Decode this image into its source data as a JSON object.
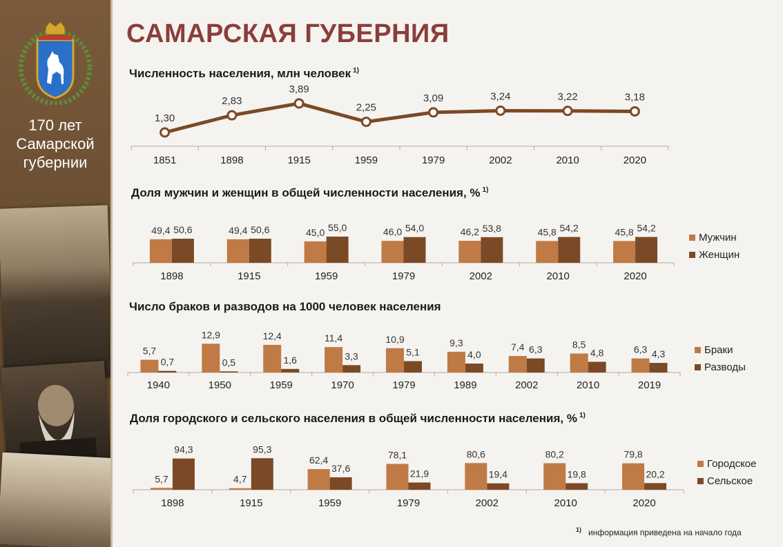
{
  "page": {
    "title": "САМАРСКАЯ ГУБЕРНИЯ",
    "sidebar_title_lines": [
      "170 лет",
      "Самарской",
      "губернии"
    ],
    "footnote_marker": "1)",
    "footnote_text": "информация приведена на начало года"
  },
  "colors": {
    "primary": "#c07a45",
    "secondary": "#7a4a26",
    "line": "#7a4a26",
    "title": "#8b3e3a"
  },
  "chart_data": [
    {
      "type": "line",
      "title": "Численность населения, млн человек",
      "title_note": "1)",
      "categories": [
        "1851",
        "1898",
        "1915",
        "1959",
        "1979",
        "2002",
        "2010",
        "2020"
      ],
      "value_labels": [
        "1,30",
        "2,83",
        "3,89",
        "2,25",
        "3,09",
        "3,24",
        "3,22",
        "3,18"
      ],
      "values": [
        1.3,
        2.83,
        3.89,
        2.25,
        3.09,
        3.24,
        3.22,
        3.18
      ],
      "ylim": [
        0.5,
        4.5
      ],
      "legend": []
    },
    {
      "type": "bar",
      "title": "Доля мужчин и женщин в общей численности населения, %",
      "title_note": "1)",
      "categories": [
        "1898",
        "1915",
        "1959",
        "1979",
        "2002",
        "2010",
        "2020"
      ],
      "series": [
        {
          "name": "Мужчин",
          "values": [
            49.4,
            49.4,
            45.0,
            46.0,
            46.2,
            45.8,
            45.8
          ],
          "labels": [
            "49,4",
            "49,4",
            "45,0",
            "46,0",
            "46,2",
            "45,8",
            "45,8"
          ]
        },
        {
          "name": "Женщин",
          "values": [
            50.6,
            50.6,
            55.0,
            54.0,
            53.8,
            54.2,
            54.2
          ],
          "labels": [
            "50,6",
            "50,6",
            "55,0",
            "54,0",
            "53,8",
            "54,2",
            "54,2"
          ]
        }
      ],
      "ylim": [
        0,
        55
      ],
      "legend": "right"
    },
    {
      "type": "bar",
      "title": "Число браков и разводов на 1000 человек населения",
      "title_note": "",
      "categories": [
        "1940",
        "1950",
        "1959",
        "1970",
        "1979",
        "1989",
        "2002",
        "2010",
        "2019"
      ],
      "series": [
        {
          "name": "Браки",
          "values": [
            5.7,
            12.9,
            12.4,
            11.4,
            10.9,
            9.3,
            7.4,
            8.5,
            6.3
          ],
          "labels": [
            "5,7",
            "12,9",
            "12,4",
            "11,4",
            "10,9",
            "9,3",
            "7,4",
            "8,5",
            "6,3"
          ]
        },
        {
          "name": "Разводы",
          "values": [
            0.7,
            0.5,
            1.6,
            3.3,
            5.1,
            4.0,
            6.3,
            4.8,
            4.3
          ],
          "labels": [
            "0,7",
            "0,5",
            "1,6",
            "3,3",
            "5,1",
            "4,0",
            "6,3",
            "4,8",
            "4,3"
          ]
        }
      ],
      "ylim": [
        0,
        13
      ],
      "legend": "right"
    },
    {
      "type": "bar",
      "title": "Доля городского и сельского населения в общей численности населения, %",
      "title_note": "1)",
      "categories": [
        "1898",
        "1915",
        "1959",
        "1979",
        "2002",
        "2010",
        "2020"
      ],
      "series": [
        {
          "name": "Городское",
          "values": [
            5.7,
            4.7,
            62.4,
            78.1,
            80.6,
            80.2,
            79.8
          ],
          "labels": [
            "5,7",
            "4,7",
            "62,4",
            "78,1",
            "80,6",
            "80,2",
            "79,8"
          ]
        },
        {
          "name": "Сельское",
          "values": [
            94.3,
            95.3,
            37.6,
            21.9,
            19.4,
            19.8,
            20.2
          ],
          "labels": [
            "94,3",
            "95,3",
            "37,6",
            "21,9",
            "19,4",
            "19,8",
            "20,2"
          ]
        }
      ],
      "ylim": [
        0,
        100
      ],
      "legend": "right"
    }
  ]
}
